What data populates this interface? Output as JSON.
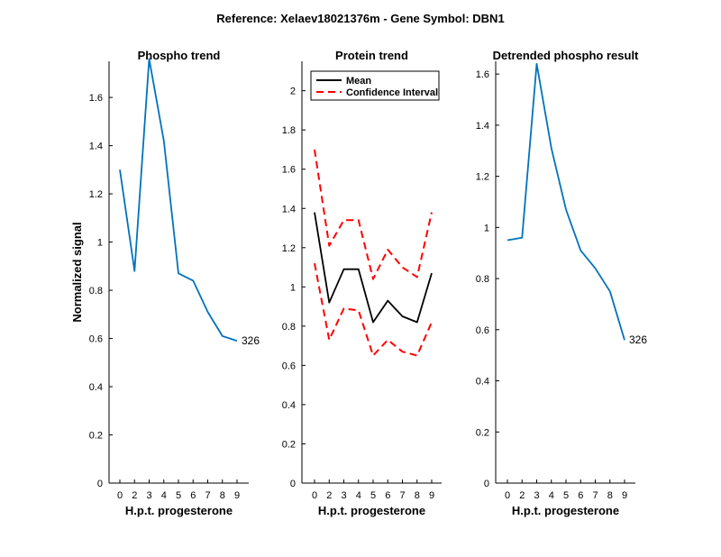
{
  "figure_title": "Reference:  Xelaev18021376m - Gene Symbol:  DBN1",
  "colors": {
    "blue": "#0072BD",
    "black": "#000000",
    "red": "#FF0000"
  },
  "chart_data": [
    {
      "type": "line",
      "title": "Phospho trend",
      "xlabel": "H.p.t. progesterone",
      "ylabel": "Normalized signal",
      "categories": [
        "0",
        "2",
        "3",
        "4",
        "5",
        "6",
        "7",
        "8",
        "9"
      ],
      "ylim": [
        0,
        1.75
      ],
      "yticks": [
        0,
        0.2,
        0.4,
        0.6,
        0.8,
        1,
        1.2,
        1.4,
        1.6
      ],
      "ytick_labels": [
        "0",
        "0.2",
        "0.4",
        "0.6",
        "0.8",
        "1",
        "1.2",
        "1.4",
        "1.6"
      ],
      "series": [
        {
          "name": "Phospho",
          "color": "#0072BD",
          "style": "solid",
          "values": [
            1.3,
            0.88,
            1.76,
            1.42,
            0.87,
            0.84,
            0.71,
            0.61,
            0.59
          ]
        }
      ],
      "annotation": "326"
    },
    {
      "type": "line",
      "title": "Protein trend",
      "xlabel": "H.p.t. progesterone",
      "ylabel": "",
      "categories": [
        "0",
        "2",
        "3",
        "4",
        "5",
        "6",
        "7",
        "8",
        "9"
      ],
      "ylim": [
        0,
        2.15
      ],
      "yticks": [
        0,
        0.2,
        0.4,
        0.6,
        0.8,
        1,
        1.2,
        1.4,
        1.6,
        1.8,
        2
      ],
      "ytick_labels": [
        "0",
        "0.2",
        "0.4",
        "0.6",
        "0.8",
        "1",
        "1.2",
        "1.4",
        "1.6",
        "1.8",
        "2"
      ],
      "legend": {
        "position": "top-left",
        "entries": [
          "Mean",
          "Confidence Interval"
        ]
      },
      "series": [
        {
          "name": "Mean",
          "color": "#000000",
          "style": "solid",
          "values": [
            1.38,
            0.92,
            1.09,
            1.09,
            0.82,
            0.93,
            0.85,
            0.82,
            1.07
          ]
        },
        {
          "name": "Confidence Interval",
          "color": "#FF0000",
          "style": "dashed",
          "values": [
            1.7,
            1.21,
            1.34,
            1.34,
            1.04,
            1.19,
            1.1,
            1.05,
            1.38
          ]
        },
        {
          "name": "Confidence Interval (lower)",
          "color": "#FF0000",
          "style": "dashed",
          "values": [
            1.12,
            0.73,
            0.89,
            0.88,
            0.65,
            0.73,
            0.67,
            0.65,
            0.82
          ]
        }
      ]
    },
    {
      "type": "line",
      "title": "Detrended phospho result",
      "xlabel": "H.p.t. progesterone",
      "ylabel": "",
      "categories": [
        "0",
        "2",
        "3",
        "4",
        "5",
        "6",
        "7",
        "8",
        "9"
      ],
      "ylim": [
        0,
        1.65
      ],
      "yticks": [
        0,
        0.2,
        0.4,
        0.6,
        0.8,
        1,
        1.2,
        1.4,
        1.6
      ],
      "ytick_labels": [
        "0",
        "0.2",
        "0.4",
        "0.6",
        "0.8",
        "1",
        "1.2",
        "1.4",
        "1.6"
      ],
      "series": [
        {
          "name": "Detrended",
          "color": "#0072BD",
          "style": "solid",
          "values": [
            0.95,
            0.96,
            1.64,
            1.31,
            1.07,
            0.91,
            0.84,
            0.75,
            0.56
          ]
        }
      ],
      "annotation": "326"
    }
  ]
}
